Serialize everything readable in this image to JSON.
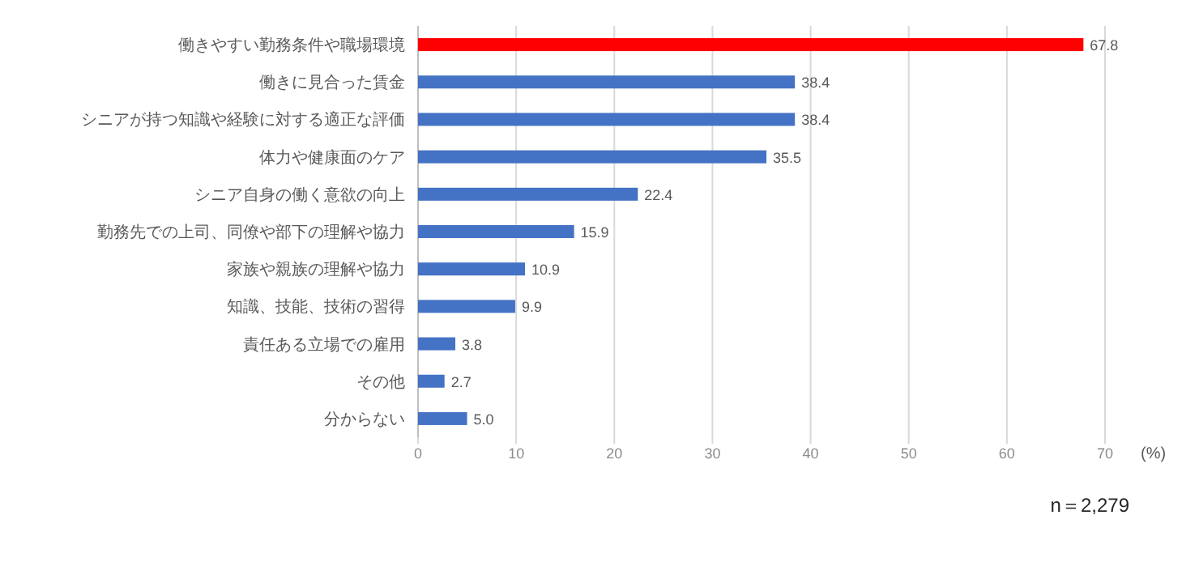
{
  "chart_data": {
    "type": "bar",
    "orientation": "horizontal",
    "categories": [
      "働きやすい勤務条件や職場環境",
      "働きに見合った賃金",
      "シニアが持つ知識や経験に対する適正な評価",
      "体力や健康面のケア",
      "シニア自身の働く意欲の向上",
      "勤務先での上司、同僚や部下の理解や協力",
      "家族や親族の理解や協力",
      "知識、技能、技術の習得",
      "責任ある立場での雇用",
      "その他",
      "分からない"
    ],
    "values": [
      67.8,
      38.4,
      38.4,
      35.5,
      22.4,
      15.9,
      10.9,
      9.9,
      3.8,
      2.7,
      5.0
    ],
    "value_labels": [
      "67.8",
      "38.4",
      "38.4",
      "35.5",
      "22.4",
      "15.9",
      "10.9",
      "9.9",
      "3.8",
      "2.7",
      "5.0"
    ],
    "colors": [
      "#ff0000",
      "#4472c4",
      "#4472c4",
      "#4472c4",
      "#4472c4",
      "#4472c4",
      "#4472c4",
      "#4472c4",
      "#4472c4",
      "#4472c4",
      "#4472c4"
    ],
    "xlim": [
      0,
      70
    ],
    "xticks": [
      0,
      10,
      20,
      30,
      40,
      50,
      60,
      70
    ],
    "xlabel": "(%)",
    "grid": "x",
    "annotations": [
      "n＝2,279"
    ]
  }
}
